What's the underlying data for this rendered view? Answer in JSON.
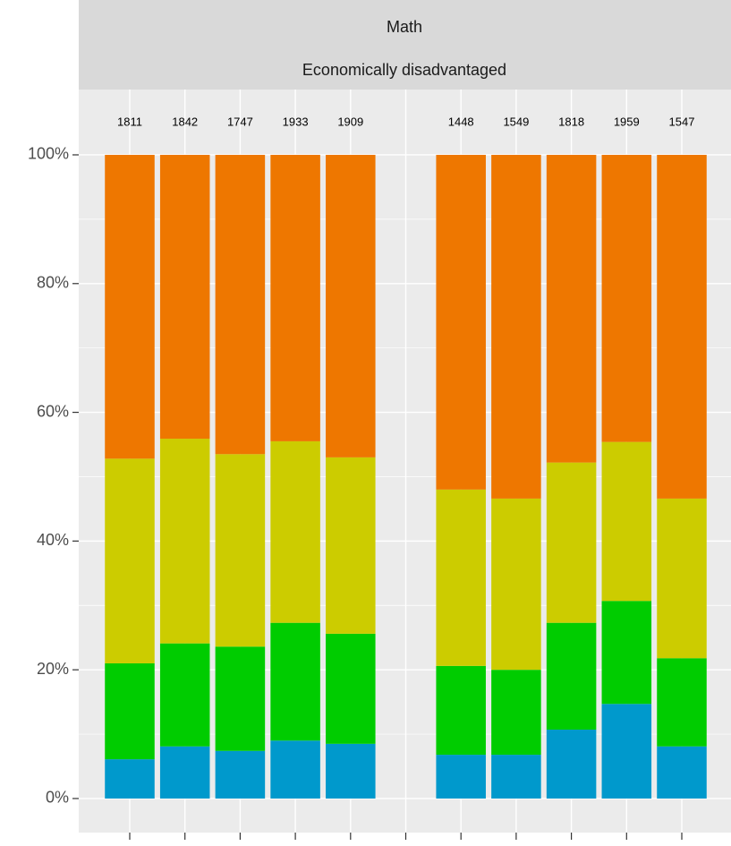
{
  "chart_data": {
    "type": "stacked_bar",
    "strips": [
      "Math",
      "Economically disadvantaged"
    ],
    "categories": [
      null,
      null,
      null,
      null,
      null,
      null,
      null,
      null,
      null,
      null,
      null
    ],
    "counts": [
      1811,
      1842,
      1747,
      1933,
      1909,
      null,
      1448,
      1549,
      1818,
      1959,
      1547
    ],
    "series": [
      {
        "color": "#0099cc",
        "values": [
          6.1,
          8.1,
          7.4,
          9.0,
          8.5,
          null,
          6.8,
          6.8,
          10.7,
          14.7,
          8.1
        ]
      },
      {
        "color": "#00cc00",
        "values": [
          14.9,
          16.0,
          16.2,
          18.3,
          17.1,
          null,
          13.8,
          13.2,
          16.6,
          16.0,
          13.7
        ]
      },
      {
        "color": "#cccc00",
        "values": [
          31.8,
          31.8,
          29.9,
          28.2,
          27.4,
          null,
          27.4,
          26.6,
          24.9,
          24.7,
          24.8
        ]
      },
      {
        "color": "#ee7700",
        "values": [
          47.2,
          44.1,
          46.5,
          44.5,
          47.0,
          null,
          52.0,
          53.4,
          47.8,
          44.6,
          53.4
        ]
      }
    ],
    "ylim": [
      -5.29,
      110.15
    ],
    "yticks": [
      {
        "value": 0,
        "label": "0%"
      },
      {
        "value": 20,
        "label": "20%"
      },
      {
        "value": 40,
        "label": "40%"
      },
      {
        "value": 60,
        "label": "60%"
      },
      {
        "value": 80,
        "label": "80%"
      },
      {
        "value": 100,
        "label": "100%"
      }
    ],
    "grid": true
  }
}
